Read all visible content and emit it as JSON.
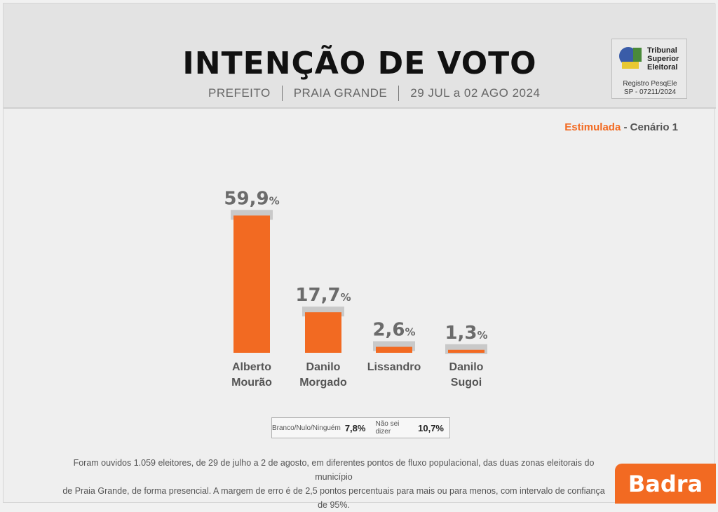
{
  "header": {
    "title": "INTENÇÃO DE VOTO",
    "office": "PREFEITO",
    "city": "PRAIA GRANDE",
    "period": "29 JUL a 02 AGO 2024"
  },
  "tse": {
    "line1": "Tribunal",
    "line2": "Superior",
    "line3": "Eleitoral",
    "reg_label": "Registro PesqEle",
    "reg_number": "SP - 07211/2024"
  },
  "scenario": {
    "type": "Estimulada",
    "name": " - Cenário 1"
  },
  "chart_data": {
    "type": "bar",
    "title": "INTENÇÃO DE VOTO",
    "categories": [
      [
        "Alberto",
        "Mourão"
      ],
      [
        "Danilo",
        "Morgado"
      ],
      [
        "Lissandro"
      ],
      [
        "Danilo",
        "Sugoi"
      ]
    ],
    "values": [
      59.9,
      17.7,
      2.6,
      1.3
    ],
    "value_labels": [
      "59,9",
      "17,7",
      "2,6",
      "1,3"
    ],
    "unit": "%",
    "ylim": [
      0,
      60
    ],
    "bar_color": "#f26a22"
  },
  "legend": {
    "blank_label": "Branco/Nulo/Ninguém",
    "blank_value": "7,8%",
    "undecided_label": "Não sei dizer",
    "undecided_value": "10,7%"
  },
  "footnote": {
    "line1": "Foram ouvidos 1.059 eleitores, de 29 de julho a 2 de agosto, em diferentes pontos de fluxo populacional, das duas zonas eleitorais do município",
    "line2": "de Praia Grande, de forma presencial. A margem de erro é de 2,5 pontos percentuais para mais ou para menos, com intervalo de confiança de 95%."
  },
  "brand": {
    "name": "Badra"
  }
}
